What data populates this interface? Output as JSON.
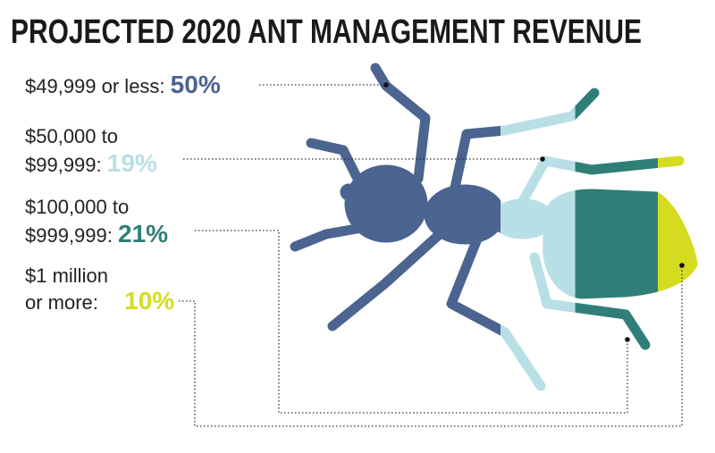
{
  "chart_data": {
    "type": "pictogram",
    "title": "PROJECTED 2020 ANT MANAGEMENT REVENUE",
    "categories": [
      "$49,999 or less:",
      "$50,000 to $99,999:",
      "$100,000 to $999,999:",
      "$1 million or more:"
    ],
    "values": [
      50,
      19,
      21,
      10
    ],
    "value_labels": [
      "50%",
      "19%",
      "21%",
      "10%"
    ],
    "colors": [
      "#4b6490",
      "#b8dfe6",
      "#2f7f78",
      "#d5dc1f"
    ]
  }
}
